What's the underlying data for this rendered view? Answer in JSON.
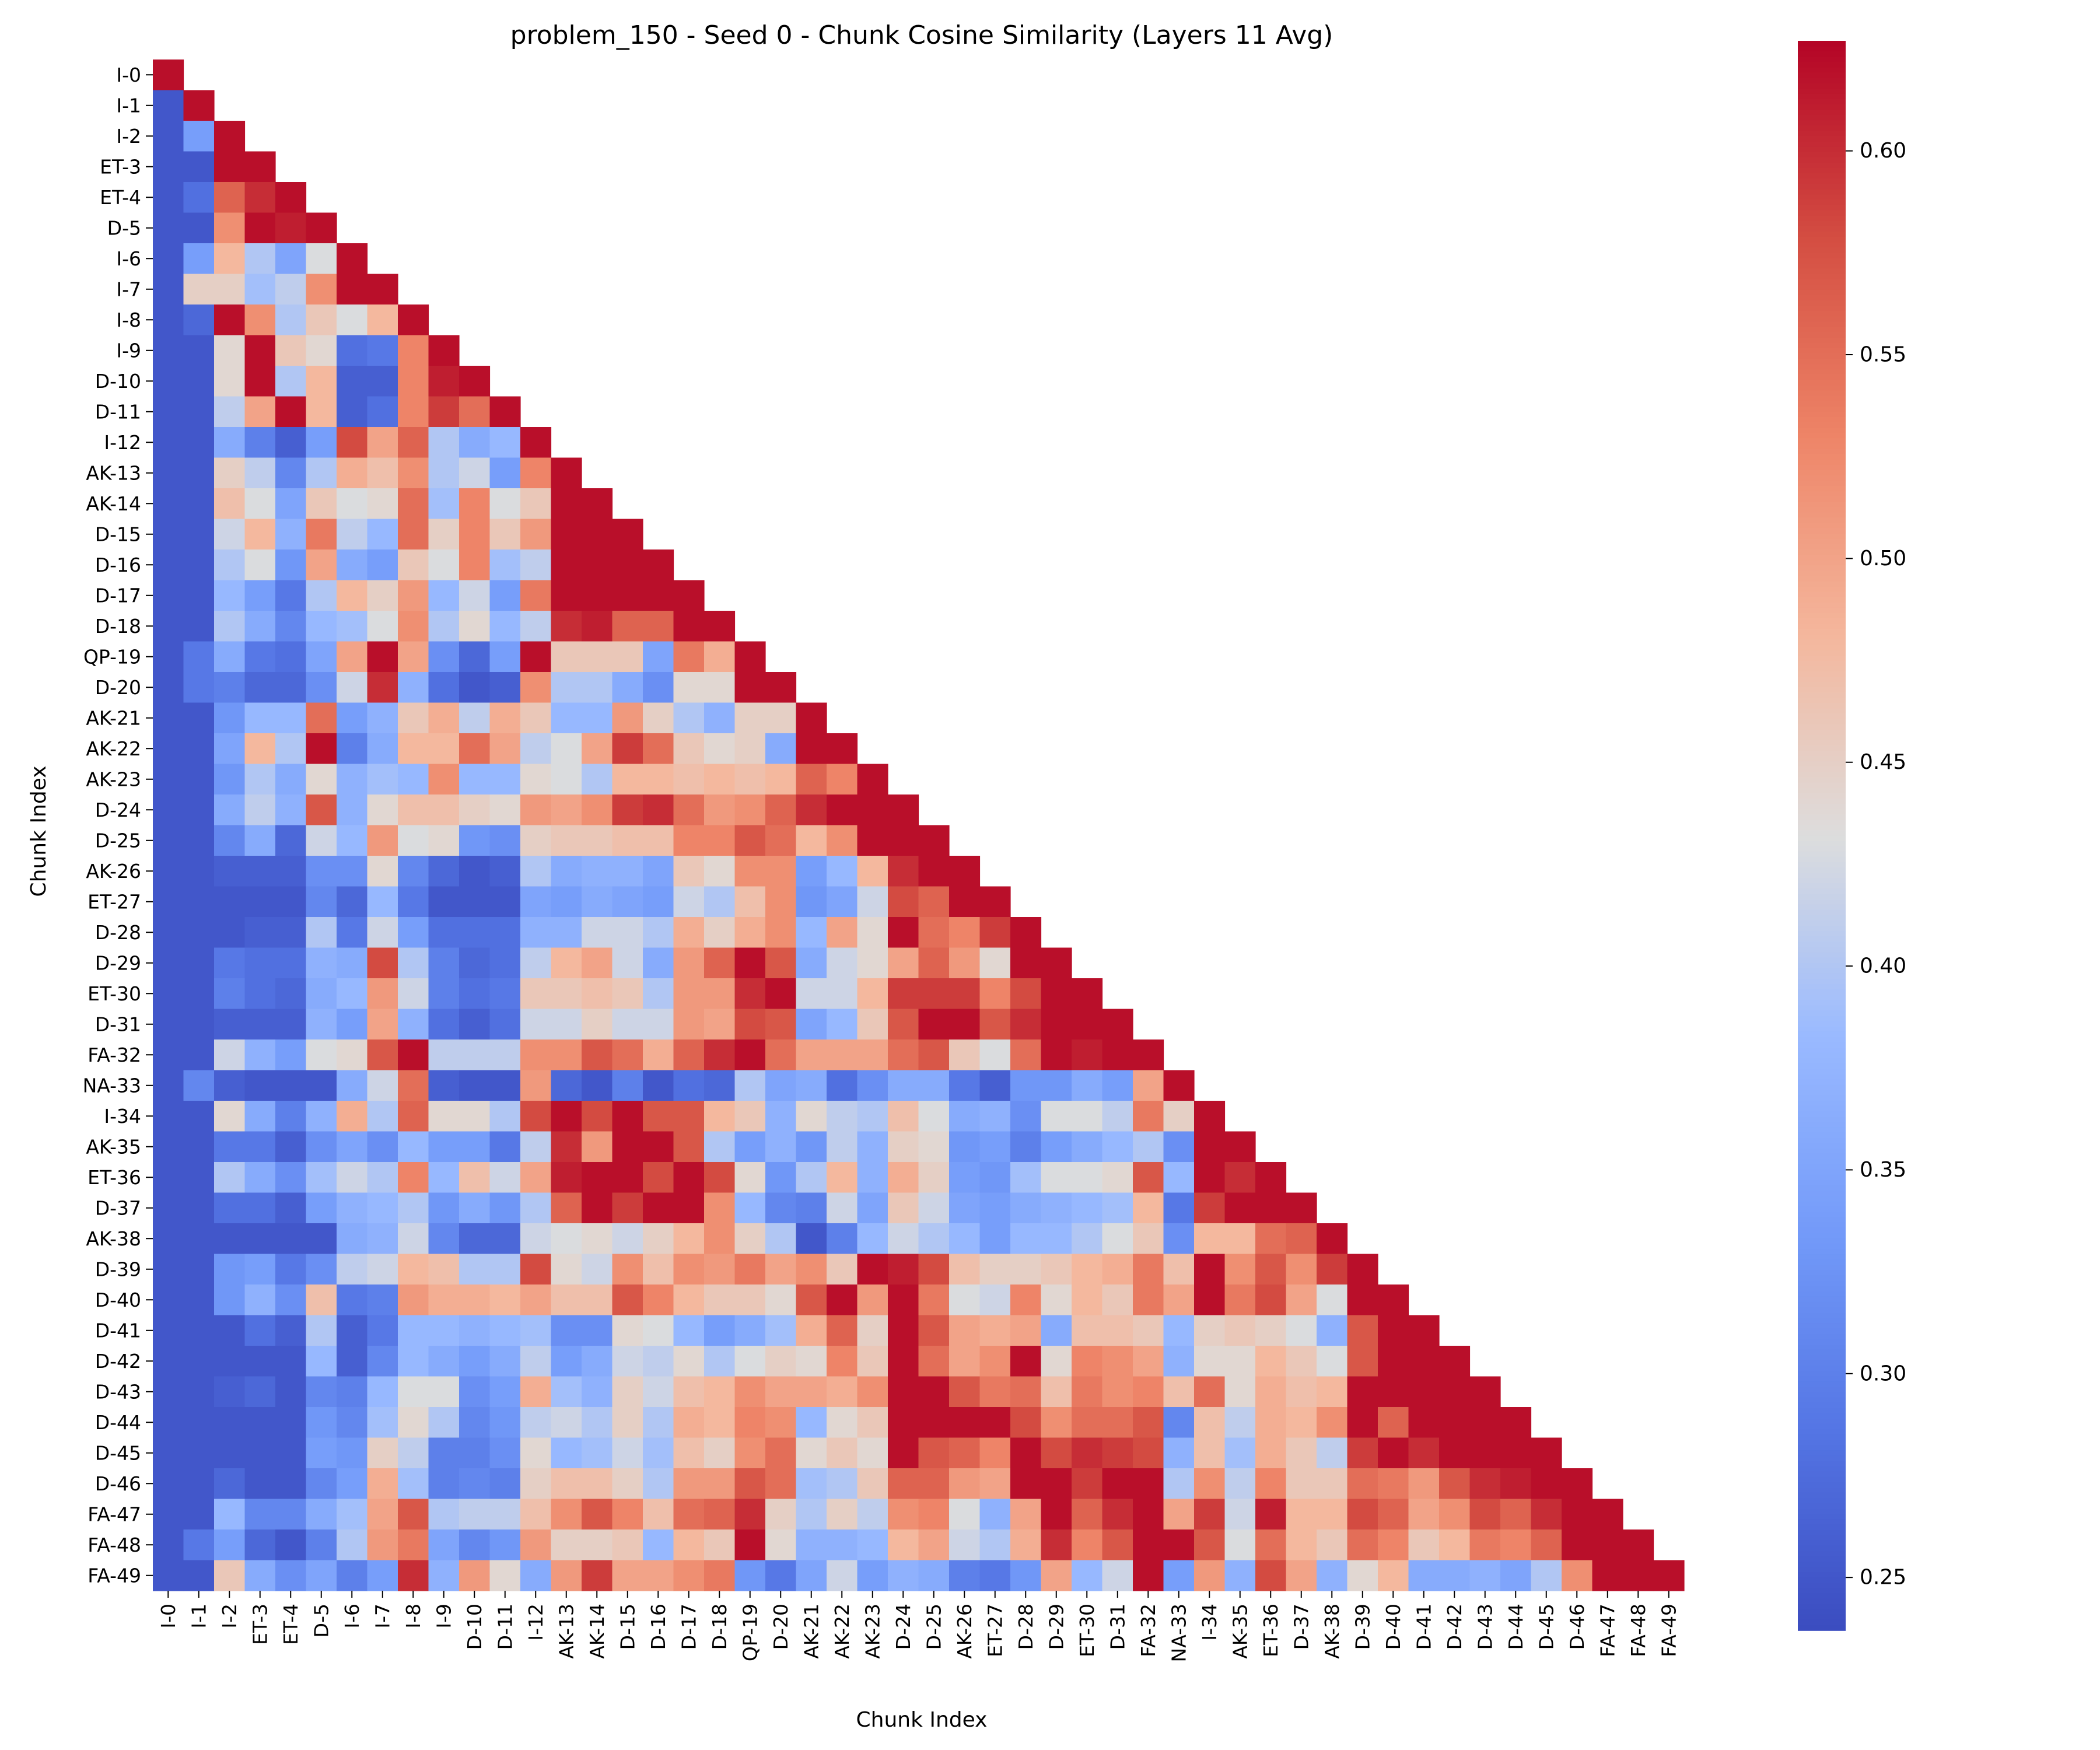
{
  "chart_data": {
    "type": "heatmap",
    "title": "problem_150 - Seed 0 - Chunk Cosine Similarity (Layers 11 Avg)",
    "xlabel": "Chunk Index",
    "ylabel": "Chunk Index",
    "labels": [
      "I-0",
      "I-1",
      "I-2",
      "ET-3",
      "ET-4",
      "D-5",
      "I-6",
      "I-7",
      "I-8",
      "I-9",
      "D-10",
      "D-11",
      "I-12",
      "AK-13",
      "AK-14",
      "D-15",
      "D-16",
      "D-17",
      "D-18",
      "QP-19",
      "D-20",
      "AK-21",
      "AK-22",
      "AK-23",
      "D-24",
      "D-25",
      "AK-26",
      "ET-27",
      "D-28",
      "D-29",
      "ET-30",
      "D-31",
      "FA-32",
      "NA-33",
      "I-34",
      "AK-35",
      "ET-36",
      "D-37",
      "AK-38",
      "D-39",
      "D-40",
      "D-41",
      "D-42",
      "D-43",
      "D-44",
      "D-45",
      "D-46",
      "FA-47",
      "FA-48",
      "FA-49"
    ],
    "mask": "upper triangle hidden (lower triangle incl. diagonal shown)",
    "colormap": "coolwarm",
    "vmin": 0.237,
    "vmax": 0.627,
    "colorbar_ticks": [
      "0.25",
      "0.30",
      "0.35",
      "0.40",
      "0.45",
      "0.50",
      "0.55",
      "0.60"
    ],
    "rows": [
      [
        0.62
      ],
      [
        0.25,
        0.62
      ],
      [
        0.25,
        0.34,
        0.62
      ],
      [
        0.25,
        0.25,
        0.62,
        0.62
      ],
      [
        0.25,
        0.28,
        0.56,
        0.6,
        0.62
      ],
      [
        0.25,
        0.25,
        0.52,
        0.62,
        0.61,
        0.62
      ],
      [
        0.25,
        0.34,
        0.48,
        0.4,
        0.35,
        0.43,
        0.62
      ],
      [
        0.25,
        0.45,
        0.45,
        0.39,
        0.41,
        0.52,
        0.62,
        0.62
      ],
      [
        0.25,
        0.27,
        0.62,
        0.52,
        0.4,
        0.46,
        0.43,
        0.48,
        0.62
      ],
      [
        0.25,
        0.25,
        0.44,
        0.62,
        0.46,
        0.44,
        0.28,
        0.29,
        0.53,
        0.62
      ],
      [
        0.25,
        0.25,
        0.44,
        0.62,
        0.4,
        0.48,
        0.26,
        0.26,
        0.53,
        0.61,
        0.62
      ],
      [
        0.25,
        0.25,
        0.41,
        0.5,
        0.62,
        0.48,
        0.26,
        0.28,
        0.53,
        0.59,
        0.55,
        0.62
      ],
      [
        0.25,
        0.25,
        0.36,
        0.3,
        0.26,
        0.34,
        0.58,
        0.5,
        0.56,
        0.4,
        0.36,
        0.38,
        0.62
      ],
      [
        0.25,
        0.25,
        0.45,
        0.41,
        0.31,
        0.4,
        0.49,
        0.47,
        0.52,
        0.4,
        0.42,
        0.34,
        0.53,
        0.62
      ],
      [
        0.25,
        0.25,
        0.47,
        0.43,
        0.35,
        0.46,
        0.43,
        0.44,
        0.55,
        0.39,
        0.53,
        0.43,
        0.46,
        0.62,
        0.62
      ],
      [
        0.25,
        0.25,
        0.42,
        0.48,
        0.37,
        0.54,
        0.41,
        0.38,
        0.55,
        0.45,
        0.53,
        0.46,
        0.51,
        0.62,
        0.62,
        0.62
      ],
      [
        0.25,
        0.25,
        0.4,
        0.43,
        0.33,
        0.5,
        0.36,
        0.34,
        0.46,
        0.43,
        0.53,
        0.39,
        0.41,
        0.62,
        0.62,
        0.62,
        0.62
      ],
      [
        0.25,
        0.25,
        0.38,
        0.34,
        0.29,
        0.4,
        0.48,
        0.45,
        0.51,
        0.38,
        0.42,
        0.34,
        0.54,
        0.62,
        0.62,
        0.62,
        0.62,
        0.62
      ],
      [
        0.25,
        0.25,
        0.4,
        0.36,
        0.31,
        0.38,
        0.39,
        0.43,
        0.52,
        0.4,
        0.44,
        0.38,
        0.41,
        0.6,
        0.61,
        0.56,
        0.56,
        0.62,
        0.62
      ],
      [
        0.25,
        0.29,
        0.36,
        0.29,
        0.28,
        0.35,
        0.5,
        0.62,
        0.5,
        0.32,
        0.27,
        0.34,
        0.62,
        0.46,
        0.46,
        0.46,
        0.35,
        0.54,
        0.49,
        0.62
      ],
      [
        0.25,
        0.29,
        0.3,
        0.27,
        0.27,
        0.32,
        0.42,
        0.6,
        0.37,
        0.28,
        0.25,
        0.26,
        0.52,
        0.4,
        0.4,
        0.36,
        0.32,
        0.44,
        0.44,
        0.62,
        0.62
      ],
      [
        0.25,
        0.25,
        0.33,
        0.38,
        0.38,
        0.55,
        0.34,
        0.37,
        0.46,
        0.49,
        0.41,
        0.49,
        0.46,
        0.38,
        0.38,
        0.51,
        0.45,
        0.4,
        0.37,
        0.45,
        0.45,
        0.62
      ],
      [
        0.25,
        0.25,
        0.35,
        0.48,
        0.4,
        0.62,
        0.3,
        0.36,
        0.48,
        0.48,
        0.55,
        0.5,
        0.41,
        0.43,
        0.5,
        0.59,
        0.55,
        0.46,
        0.44,
        0.45,
        0.36,
        0.62,
        0.62
      ],
      [
        0.25,
        0.25,
        0.33,
        0.4,
        0.36,
        0.44,
        0.37,
        0.39,
        0.38,
        0.52,
        0.38,
        0.38,
        0.44,
        0.43,
        0.4,
        0.48,
        0.48,
        0.47,
        0.48,
        0.47,
        0.48,
        0.56,
        0.53,
        0.62
      ],
      [
        0.25,
        0.25,
        0.36,
        0.41,
        0.37,
        0.57,
        0.37,
        0.44,
        0.47,
        0.47,
        0.45,
        0.44,
        0.51,
        0.5,
        0.52,
        0.59,
        0.6,
        0.55,
        0.51,
        0.52,
        0.56,
        0.6,
        0.62,
        0.62,
        0.62
      ],
      [
        0.25,
        0.25,
        0.31,
        0.36,
        0.27,
        0.42,
        0.38,
        0.51,
        0.43,
        0.44,
        0.33,
        0.32,
        0.45,
        0.46,
        0.46,
        0.47,
        0.47,
        0.53,
        0.53,
        0.57,
        0.55,
        0.48,
        0.52,
        0.62,
        0.62,
        0.62
      ],
      [
        0.25,
        0.25,
        0.26,
        0.26,
        0.26,
        0.32,
        0.32,
        0.44,
        0.31,
        0.27,
        0.25,
        0.26,
        0.4,
        0.36,
        0.37,
        0.37,
        0.35,
        0.46,
        0.44,
        0.52,
        0.52,
        0.34,
        0.38,
        0.48,
        0.6,
        0.62,
        0.62
      ],
      [
        0.25,
        0.25,
        0.25,
        0.25,
        0.25,
        0.31,
        0.27,
        0.38,
        0.29,
        0.25,
        0.25,
        0.25,
        0.35,
        0.34,
        0.36,
        0.35,
        0.34,
        0.42,
        0.4,
        0.47,
        0.52,
        0.33,
        0.35,
        0.42,
        0.58,
        0.56,
        0.62,
        0.62
      ],
      [
        0.25,
        0.25,
        0.25,
        0.26,
        0.26,
        0.4,
        0.29,
        0.42,
        0.34,
        0.28,
        0.28,
        0.28,
        0.37,
        0.37,
        0.42,
        0.42,
        0.4,
        0.49,
        0.45,
        0.49,
        0.52,
        0.38,
        0.5,
        0.44,
        0.62,
        0.55,
        0.53,
        0.59,
        0.62
      ],
      [
        0.25,
        0.25,
        0.29,
        0.28,
        0.28,
        0.37,
        0.36,
        0.58,
        0.4,
        0.3,
        0.27,
        0.28,
        0.41,
        0.48,
        0.5,
        0.42,
        0.36,
        0.51,
        0.56,
        0.62,
        0.57,
        0.36,
        0.42,
        0.44,
        0.5,
        0.56,
        0.51,
        0.44,
        0.62,
        0.62
      ],
      [
        0.25,
        0.25,
        0.3,
        0.28,
        0.27,
        0.36,
        0.38,
        0.51,
        0.42,
        0.3,
        0.28,
        0.29,
        0.46,
        0.46,
        0.47,
        0.46,
        0.4,
        0.51,
        0.51,
        0.6,
        0.62,
        0.42,
        0.42,
        0.48,
        0.59,
        0.59,
        0.59,
        0.53,
        0.58,
        0.62,
        0.62
      ],
      [
        0.25,
        0.25,
        0.26,
        0.26,
        0.26,
        0.37,
        0.34,
        0.5,
        0.37,
        0.28,
        0.26,
        0.28,
        0.42,
        0.42,
        0.45,
        0.42,
        0.42,
        0.51,
        0.5,
        0.58,
        0.57,
        0.35,
        0.38,
        0.46,
        0.57,
        0.62,
        0.62,
        0.57,
        0.6,
        0.62,
        0.62,
        0.62
      ],
      [
        0.25,
        0.25,
        0.42,
        0.37,
        0.34,
        0.43,
        0.44,
        0.57,
        0.62,
        0.41,
        0.41,
        0.41,
        0.52,
        0.52,
        0.57,
        0.55,
        0.49,
        0.56,
        0.6,
        0.62,
        0.55,
        0.5,
        0.5,
        0.5,
        0.55,
        0.57,
        0.46,
        0.43,
        0.55,
        0.62,
        0.61,
        0.62,
        0.62
      ],
      [
        0.25,
        0.31,
        0.26,
        0.25,
        0.25,
        0.25,
        0.36,
        0.42,
        0.55,
        0.26,
        0.25,
        0.25,
        0.51,
        0.27,
        0.25,
        0.3,
        0.25,
        0.28,
        0.27,
        0.4,
        0.35,
        0.36,
        0.28,
        0.32,
        0.36,
        0.36,
        0.29,
        0.26,
        0.33,
        0.33,
        0.36,
        0.34,
        0.5,
        0.62
      ],
      [
        0.25,
        0.25,
        0.44,
        0.36,
        0.3,
        0.37,
        0.49,
        0.4,
        0.56,
        0.44,
        0.44,
        0.4,
        0.58,
        0.62,
        0.58,
        0.62,
        0.57,
        0.57,
        0.48,
        0.46,
        0.37,
        0.44,
        0.41,
        0.4,
        0.47,
        0.43,
        0.36,
        0.37,
        0.32,
        0.43,
        0.43,
        0.41,
        0.54,
        0.45,
        0.62
      ],
      [
        0.25,
        0.25,
        0.29,
        0.29,
        0.26,
        0.32,
        0.35,
        0.32,
        0.38,
        0.34,
        0.34,
        0.29,
        0.41,
        0.6,
        0.51,
        0.62,
        0.62,
        0.57,
        0.4,
        0.34,
        0.37,
        0.33,
        0.41,
        0.37,
        0.45,
        0.44,
        0.33,
        0.34,
        0.3,
        0.34,
        0.36,
        0.38,
        0.4,
        0.32,
        0.62,
        0.62
      ],
      [
        0.25,
        0.25,
        0.4,
        0.36,
        0.32,
        0.39,
        0.42,
        0.4,
        0.53,
        0.38,
        0.47,
        0.42,
        0.5,
        0.61,
        0.62,
        0.62,
        0.58,
        0.62,
        0.58,
        0.44,
        0.33,
        0.4,
        0.48,
        0.37,
        0.49,
        0.45,
        0.34,
        0.33,
        0.39,
        0.43,
        0.43,
        0.44,
        0.57,
        0.38,
        0.62,
        0.6,
        0.62
      ],
      [
        0.25,
        0.25,
        0.28,
        0.28,
        0.26,
        0.34,
        0.37,
        0.38,
        0.4,
        0.33,
        0.36,
        0.33,
        0.4,
        0.56,
        0.62,
        0.59,
        0.62,
        0.62,
        0.52,
        0.38,
        0.31,
        0.3,
        0.42,
        0.35,
        0.46,
        0.42,
        0.35,
        0.34,
        0.36,
        0.37,
        0.38,
        0.39,
        0.48,
        0.29,
        0.59,
        0.62,
        0.62,
        0.62
      ],
      [
        0.25,
        0.25,
        0.25,
        0.25,
        0.25,
        0.25,
        0.36,
        0.37,
        0.42,
        0.31,
        0.27,
        0.27,
        0.42,
        0.43,
        0.44,
        0.42,
        0.45,
        0.48,
        0.52,
        0.45,
        0.4,
        0.25,
        0.3,
        0.38,
        0.42,
        0.4,
        0.38,
        0.34,
        0.38,
        0.38,
        0.4,
        0.43,
        0.46,
        0.32,
        0.48,
        0.48,
        0.55,
        0.56,
        0.62
      ],
      [
        0.25,
        0.25,
        0.33,
        0.34,
        0.29,
        0.32,
        0.41,
        0.42,
        0.48,
        0.47,
        0.4,
        0.4,
        0.58,
        0.44,
        0.42,
        0.52,
        0.47,
        0.52,
        0.51,
        0.54,
        0.5,
        0.52,
        0.46,
        0.62,
        0.61,
        0.58,
        0.47,
        0.45,
        0.45,
        0.46,
        0.48,
        0.49,
        0.54,
        0.47,
        0.62,
        0.52,
        0.57,
        0.52,
        0.59,
        0.62
      ],
      [
        0.25,
        0.25,
        0.33,
        0.37,
        0.32,
        0.47,
        0.29,
        0.3,
        0.51,
        0.49,
        0.49,
        0.48,
        0.5,
        0.47,
        0.47,
        0.57,
        0.53,
        0.48,
        0.46,
        0.46,
        0.44,
        0.57,
        0.62,
        0.51,
        0.62,
        0.54,
        0.43,
        0.42,
        0.53,
        0.44,
        0.48,
        0.46,
        0.54,
        0.5,
        0.62,
        0.54,
        0.58,
        0.5,
        0.43,
        0.62,
        0.62
      ],
      [
        0.25,
        0.25,
        0.25,
        0.28,
        0.26,
        0.4,
        0.26,
        0.29,
        0.38,
        0.38,
        0.37,
        0.38,
        0.39,
        0.32,
        0.32,
        0.44,
        0.43,
        0.38,
        0.34,
        0.36,
        0.39,
        0.49,
        0.56,
        0.45,
        0.62,
        0.57,
        0.5,
        0.49,
        0.5,
        0.36,
        0.47,
        0.47,
        0.46,
        0.38,
        0.45,
        0.46,
        0.45,
        0.43,
        0.37,
        0.57,
        0.62,
        0.62
      ],
      [
        0.25,
        0.25,
        0.25,
        0.25,
        0.25,
        0.38,
        0.26,
        0.31,
        0.38,
        0.36,
        0.34,
        0.36,
        0.41,
        0.34,
        0.36,
        0.42,
        0.41,
        0.44,
        0.4,
        0.43,
        0.45,
        0.44,
        0.53,
        0.46,
        0.62,
        0.55,
        0.5,
        0.52,
        0.62,
        0.44,
        0.53,
        0.52,
        0.5,
        0.37,
        0.44,
        0.44,
        0.48,
        0.46,
        0.43,
        0.57,
        0.62,
        0.62,
        0.62
      ],
      [
        0.25,
        0.25,
        0.26,
        0.27,
        0.25,
        0.31,
        0.3,
        0.38,
        0.43,
        0.43,
        0.32,
        0.34,
        0.49,
        0.39,
        0.37,
        0.45,
        0.42,
        0.47,
        0.48,
        0.52,
        0.5,
        0.5,
        0.49,
        0.52,
        0.62,
        0.62,
        0.57,
        0.54,
        0.55,
        0.47,
        0.54,
        0.52,
        0.53,
        0.47,
        0.55,
        0.44,
        0.49,
        0.47,
        0.48,
        0.62,
        0.62,
        0.62,
        0.62,
        0.62
      ],
      [
        0.25,
        0.25,
        0.25,
        0.25,
        0.25,
        0.33,
        0.31,
        0.39,
        0.44,
        0.4,
        0.31,
        0.33,
        0.41,
        0.42,
        0.4,
        0.45,
        0.4,
        0.49,
        0.48,
        0.53,
        0.52,
        0.38,
        0.44,
        0.46,
        0.62,
        0.62,
        0.62,
        0.62,
        0.58,
        0.52,
        0.55,
        0.55,
        0.57,
        0.31,
        0.47,
        0.41,
        0.49,
        0.48,
        0.52,
        0.62,
        0.56,
        0.62,
        0.62,
        0.62,
        0.62
      ],
      [
        0.25,
        0.25,
        0.25,
        0.25,
        0.25,
        0.34,
        0.33,
        0.45,
        0.41,
        0.3,
        0.3,
        0.32,
        0.44,
        0.38,
        0.39,
        0.42,
        0.39,
        0.47,
        0.45,
        0.52,
        0.55,
        0.44,
        0.46,
        0.44,
        0.62,
        0.57,
        0.56,
        0.53,
        0.62,
        0.58,
        0.6,
        0.59,
        0.58,
        0.37,
        0.47,
        0.39,
        0.49,
        0.46,
        0.41,
        0.59,
        0.62,
        0.6,
        0.62,
        0.62,
        0.62,
        0.62
      ],
      [
        0.25,
        0.25,
        0.27,
        0.25,
        0.25,
        0.31,
        0.34,
        0.49,
        0.39,
        0.3,
        0.31,
        0.3,
        0.45,
        0.47,
        0.47,
        0.45,
        0.4,
        0.51,
        0.51,
        0.57,
        0.55,
        0.39,
        0.4,
        0.46,
        0.56,
        0.56,
        0.51,
        0.5,
        0.62,
        0.62,
        0.59,
        0.62,
        0.62,
        0.4,
        0.52,
        0.41,
        0.53,
        0.46,
        0.46,
        0.55,
        0.54,
        0.51,
        0.57,
        0.6,
        0.61,
        0.62,
        0.62
      ],
      [
        0.25,
        0.25,
        0.38,
        0.31,
        0.31,
        0.36,
        0.39,
        0.5,
        0.57,
        0.4,
        0.41,
        0.41,
        0.47,
        0.52,
        0.57,
        0.53,
        0.47,
        0.55,
        0.56,
        0.6,
        0.45,
        0.4,
        0.45,
        0.41,
        0.52,
        0.53,
        0.43,
        0.37,
        0.5,
        0.62,
        0.56,
        0.6,
        0.62,
        0.5,
        0.59,
        0.42,
        0.61,
        0.48,
        0.48,
        0.58,
        0.56,
        0.5,
        0.52,
        0.58,
        0.56,
        0.6,
        0.62,
        0.62
      ],
      [
        0.25,
        0.29,
        0.34,
        0.27,
        0.25,
        0.3,
        0.4,
        0.51,
        0.54,
        0.35,
        0.31,
        0.33,
        0.51,
        0.45,
        0.45,
        0.46,
        0.38,
        0.48,
        0.46,
        0.62,
        0.44,
        0.37,
        0.37,
        0.38,
        0.48,
        0.5,
        0.42,
        0.4,
        0.49,
        0.6,
        0.53,
        0.57,
        0.62,
        0.62,
        0.57,
        0.43,
        0.55,
        0.48,
        0.46,
        0.55,
        0.53,
        0.46,
        0.48,
        0.54,
        0.53,
        0.56,
        0.62,
        0.62,
        0.62
      ],
      [
        0.25,
        0.25,
        0.46,
        0.36,
        0.32,
        0.35,
        0.3,
        0.34,
        0.6,
        0.37,
        0.51,
        0.44,
        0.36,
        0.51,
        0.59,
        0.5,
        0.5,
        0.52,
        0.54,
        0.33,
        0.29,
        0.35,
        0.42,
        0.34,
        0.37,
        0.36,
        0.3,
        0.29,
        0.33,
        0.5,
        0.38,
        0.42,
        0.62,
        0.34,
        0.51,
        0.37,
        0.58,
        0.5,
        0.37,
        0.44,
        0.48,
        0.36,
        0.36,
        0.37,
        0.35,
        0.4,
        0.52,
        0.62,
        0.62,
        0.62
      ]
    ]
  }
}
